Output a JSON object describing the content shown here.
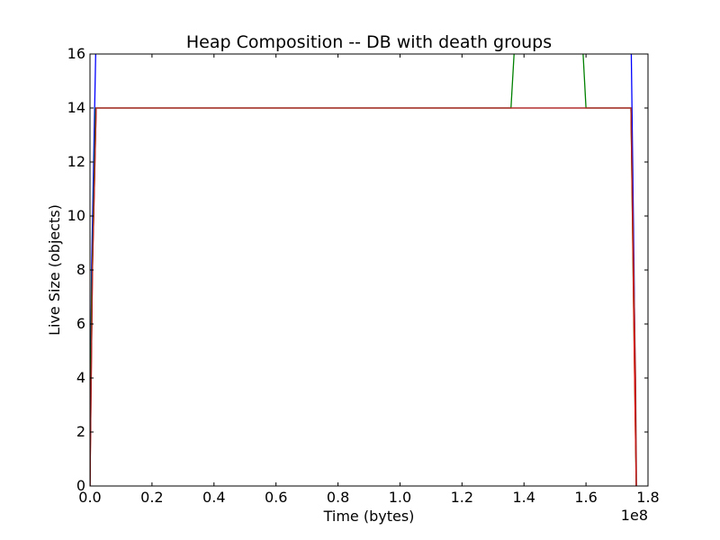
{
  "chart_data": {
    "type": "line",
    "title": "Heap Composition -- DB with death groups",
    "xlabel": "Time (bytes)",
    "ylabel": "Live Size (objects)",
    "x_offset_label": "1e8",
    "x_scale": 100000000,
    "xlim": [
      0,
      1.8
    ],
    "ylim": [
      0,
      16
    ],
    "xticks": [
      0.0,
      0.2,
      0.4,
      0.6,
      0.8,
      1.0,
      1.2,
      1.4,
      1.6,
      1.8
    ],
    "xtick_labels": [
      "0.0",
      "0.2",
      "0.4",
      "0.6",
      "0.8",
      "1.0",
      "1.2",
      "1.4",
      "1.6",
      "1.8"
    ],
    "yticks": [
      0,
      2,
      4,
      6,
      8,
      10,
      12,
      14,
      16
    ],
    "ytick_labels": [
      "0",
      "2",
      "4",
      "6",
      "8",
      "10",
      "12",
      "14",
      "16"
    ],
    "grid": false,
    "series": [
      {
        "color": "#0000ff",
        "x": [
          0.0,
          0.005,
          0.02,
          1.745,
          1.755,
          1.762
        ],
        "y": [
          0,
          8,
          17,
          17,
          8,
          0
        ]
      },
      {
        "color": "#008000",
        "x": [
          0.0,
          0.005,
          0.018,
          1.358,
          1.373,
          1.586,
          1.6,
          1.745,
          1.753,
          1.762
        ],
        "y": [
          0,
          7,
          14,
          14,
          17,
          17,
          14,
          14,
          7,
          0
        ]
      },
      {
        "color": "#ff0000",
        "x": [
          0.0,
          0.008,
          0.02,
          1.745,
          1.757,
          1.762
        ],
        "y": [
          0,
          8,
          14,
          14,
          4,
          0
        ]
      },
      {
        "color": "#a52a2a",
        "x": [
          0.0,
          0.008,
          0.02,
          1.745,
          1.76,
          1.763
        ],
        "y": [
          0,
          8,
          14,
          14,
          4,
          0
        ]
      }
    ]
  }
}
